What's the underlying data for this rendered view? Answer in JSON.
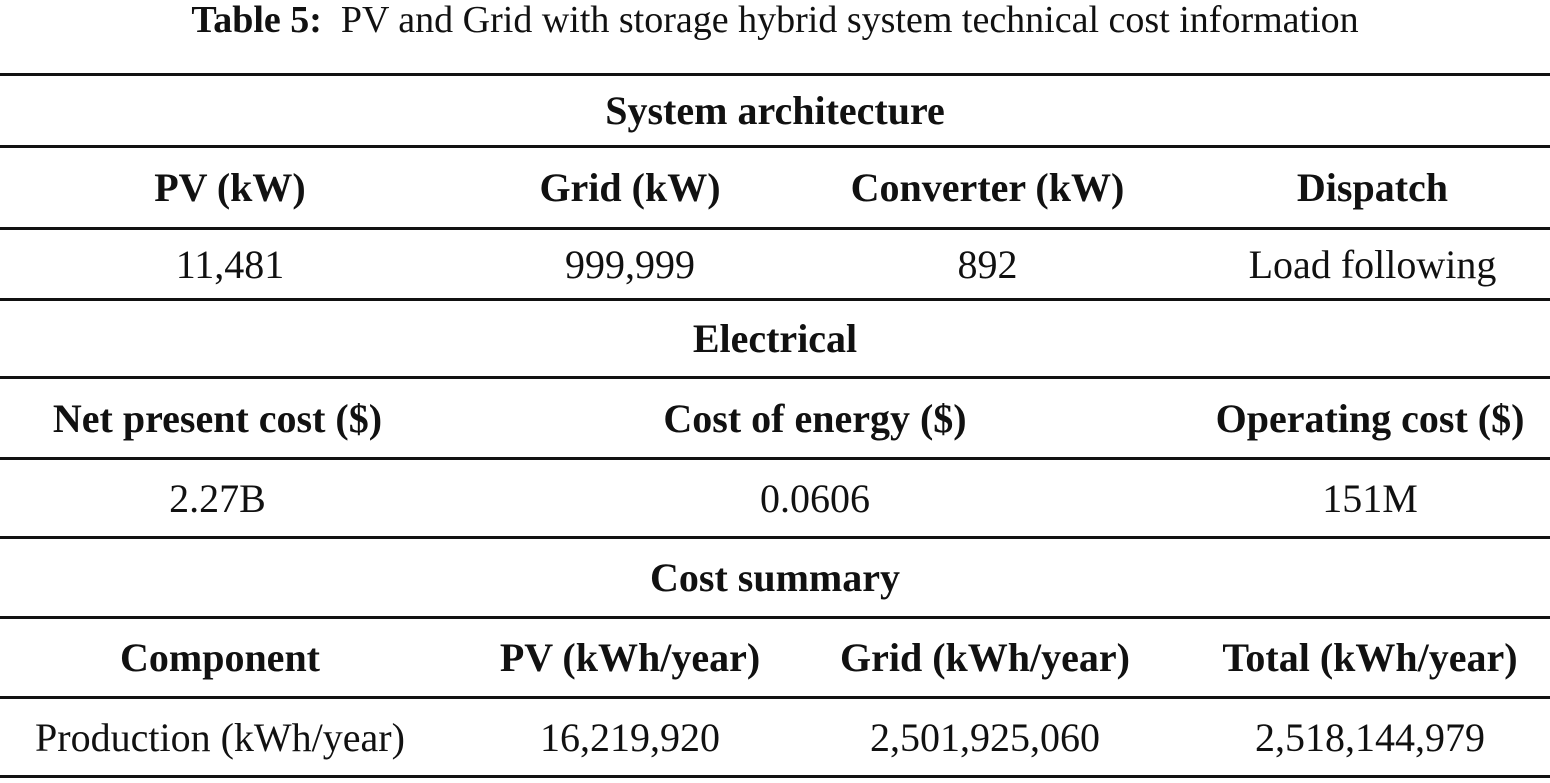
{
  "caption": {
    "label": "Table 5:",
    "text": "PV and Grid with storage hybrid system technical cost information"
  },
  "sections": {
    "architecture": {
      "title": "System architecture",
      "headers": [
        "PV (kW)",
        "Grid (kW)",
        "Converter (kW)",
        "Dispatch"
      ],
      "values": [
        "11,481",
        "999,999",
        "892",
        "Load following"
      ]
    },
    "electrical": {
      "title": "Electrical",
      "headers": [
        "Net present cost ($)",
        "Cost of energy ($)",
        "Operating cost ($)"
      ],
      "values": [
        "2.27B",
        "0.0606",
        "151M"
      ]
    },
    "cost_summary": {
      "title": "Cost summary",
      "headers": [
        "Component",
        "PV (kWh/year)",
        "Grid (kWh/year)",
        "Total (kWh/year)"
      ],
      "values": [
        "Production (kWh/year)",
        "16,219,920",
        "2,501,925,060",
        "2,518,144,979"
      ]
    }
  }
}
